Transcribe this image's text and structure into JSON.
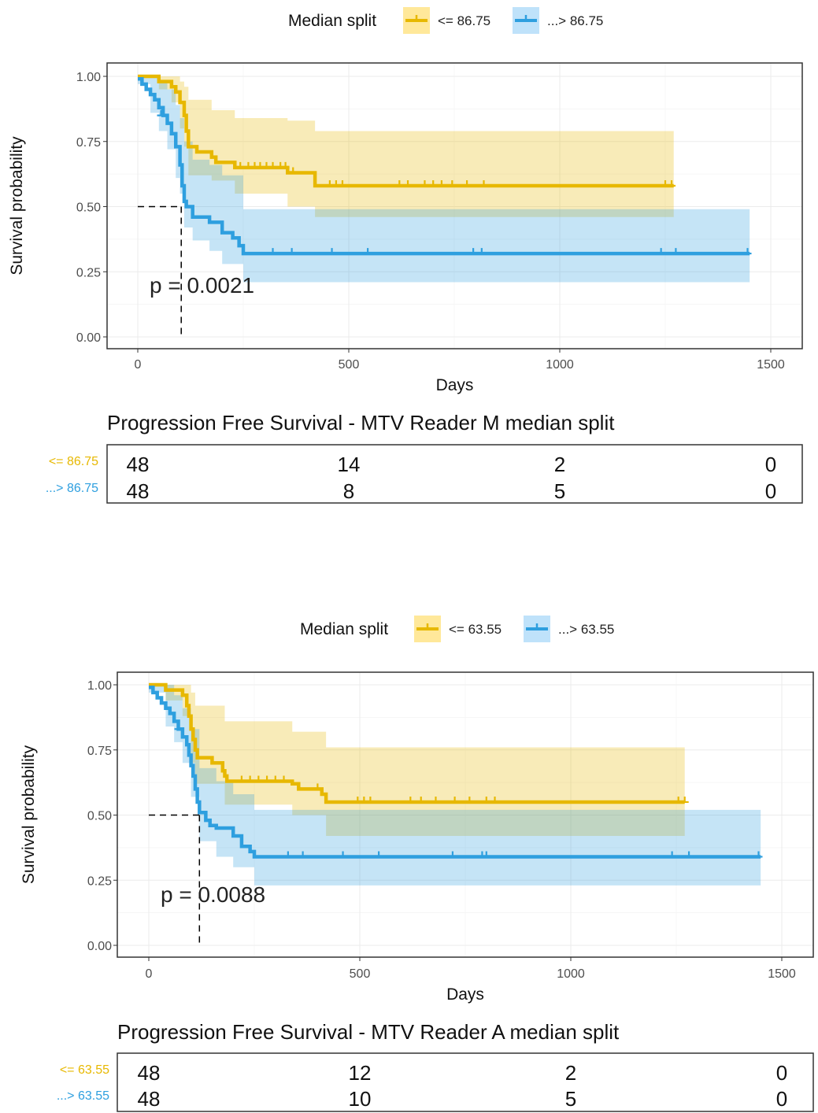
{
  "chart_data": [
    {
      "type": "line",
      "subtype": "kaplan-meier",
      "legend": {
        "title": "Median split",
        "position": "top",
        "entries": [
          {
            "label": "<= 86.75",
            "color": "#E7B800"
          },
          {
            "label": "...> 86.75",
            "color": "#2E9FDF"
          }
        ]
      },
      "ylabel": "Survival probability",
      "xlabel": "Days",
      "xlim": [
        0,
        1500
      ],
      "ylim": [
        0,
        1
      ],
      "xticks": [
        "0",
        "500",
        "1000",
        "1500"
      ],
      "yticks": [
        "0.00",
        "0.25",
        "0.50",
        "0.75",
        "1.00"
      ],
      "pvalue_text": "p = 0.0021",
      "median_line": {
        "x": 103,
        "y": 0.5
      },
      "series": [
        {
          "name": "<= 86.75",
          "color": "#E7B800",
          "fill": "#FFE89A",
          "steps": [
            [
              0,
              1.0
            ],
            [
              50,
              0.98
            ],
            [
              80,
              0.96
            ],
            [
              90,
              0.94
            ],
            [
              100,
              0.9
            ],
            [
              110,
              0.85
            ],
            [
              115,
              0.79
            ],
            [
              120,
              0.73
            ],
            [
              140,
              0.71
            ],
            [
              175,
              0.69
            ],
            [
              185,
              0.67
            ],
            [
              230,
              0.65
            ],
            [
              355,
              0.63
            ],
            [
              420,
              0.58
            ],
            [
              1270,
              0.58
            ]
          ],
          "upper": [
            [
              0,
              1.0
            ],
            [
              50,
              1.0
            ],
            [
              80,
              1.0
            ],
            [
              100,
              0.98
            ],
            [
              110,
              0.96
            ],
            [
              120,
              0.91
            ],
            [
              175,
              0.87
            ],
            [
              230,
              0.84
            ],
            [
              355,
              0.83
            ],
            [
              420,
              0.79
            ],
            [
              1270,
              0.75
            ]
          ],
          "lower": [
            [
              0,
              1.0
            ],
            [
              50,
              0.95
            ],
            [
              80,
              0.9
            ],
            [
              100,
              0.8
            ],
            [
              110,
              0.73
            ],
            [
              120,
              0.62
            ],
            [
              175,
              0.6
            ],
            [
              230,
              0.55
            ],
            [
              355,
              0.5
            ],
            [
              420,
              0.46
            ],
            [
              1270,
              0.46
            ]
          ],
          "censors": [
            [
              243,
              0.65
            ],
            [
              262,
              0.65
            ],
            [
              277,
              0.65
            ],
            [
              290,
              0.65
            ],
            [
              305,
              0.65
            ],
            [
              320,
              0.65
            ],
            [
              338,
              0.65
            ],
            [
              350,
              0.65
            ],
            [
              368,
              0.63
            ],
            [
              455,
              0.58
            ],
            [
              470,
              0.58
            ],
            [
              485,
              0.58
            ],
            [
              620,
              0.58
            ],
            [
              640,
              0.58
            ],
            [
              680,
              0.58
            ],
            [
              700,
              0.58
            ],
            [
              720,
              0.58
            ],
            [
              745,
              0.58
            ],
            [
              780,
              0.58
            ],
            [
              820,
              0.58
            ],
            [
              1250,
              0.58
            ],
            [
              1265,
              0.58
            ]
          ]
        },
        {
          "name": "...> 86.75",
          "color": "#2E9FDF",
          "fill": "#BFE2FA",
          "steps": [
            [
              0,
              0.99
            ],
            [
              10,
              0.97
            ],
            [
              20,
              0.95
            ],
            [
              30,
              0.93
            ],
            [
              40,
              0.91
            ],
            [
              50,
              0.88
            ],
            [
              60,
              0.85
            ],
            [
              70,
              0.82
            ],
            [
              80,
              0.78
            ],
            [
              90,
              0.73
            ],
            [
              100,
              0.66
            ],
            [
              105,
              0.58
            ],
            [
              110,
              0.52
            ],
            [
              115,
              0.5
            ],
            [
              130,
              0.46
            ],
            [
              170,
              0.44
            ],
            [
              200,
              0.4
            ],
            [
              225,
              0.38
            ],
            [
              240,
              0.35
            ],
            [
              250,
              0.32
            ],
            [
              1450,
              0.32
            ]
          ],
          "upper": [
            [
              0,
              1.0
            ],
            [
              30,
              1.0
            ],
            [
              50,
              0.98
            ],
            [
              70,
              0.95
            ],
            [
              90,
              0.89
            ],
            [
              100,
              0.84
            ],
            [
              110,
              0.75
            ],
            [
              130,
              0.68
            ],
            [
              170,
              0.66
            ],
            [
              200,
              0.62
            ],
            [
              250,
              0.49
            ],
            [
              1450,
              0.49
            ]
          ],
          "lower": [
            [
              0,
              0.97
            ],
            [
              30,
              0.86
            ],
            [
              50,
              0.79
            ],
            [
              70,
              0.72
            ],
            [
              90,
              0.61
            ],
            [
              100,
              0.55
            ],
            [
              110,
              0.42
            ],
            [
              130,
              0.37
            ],
            [
              170,
              0.33
            ],
            [
              200,
              0.28
            ],
            [
              250,
              0.21
            ],
            [
              1450,
              0.21
            ]
          ],
          "censors": [
            [
              55,
              0.85
            ],
            [
              320,
              0.32
            ],
            [
              365,
              0.32
            ],
            [
              460,
              0.32
            ],
            [
              545,
              0.32
            ],
            [
              795,
              0.32
            ],
            [
              815,
              0.32
            ],
            [
              1240,
              0.32
            ],
            [
              1275,
              0.32
            ],
            [
              1445,
              0.32
            ]
          ]
        }
      ],
      "risk_table": {
        "title": "Progression Free Survival -  MTV Reader M  median split",
        "rows": [
          {
            "label": "<= 86.75",
            "color": "#E7B800",
            "values": [
              "48",
              "14",
              "2",
              "0"
            ]
          },
          {
            "label": "...> 86.75",
            "color": "#2E9FDF",
            "values": [
              "48",
              "8",
              "5",
              "0"
            ]
          }
        ]
      }
    },
    {
      "type": "line",
      "subtype": "kaplan-meier",
      "legend": {
        "title": "Median split",
        "position": "top",
        "entries": [
          {
            "label": "<= 63.55",
            "color": "#E7B800"
          },
          {
            "label": "...> 63.55",
            "color": "#2E9FDF"
          }
        ]
      },
      "ylabel": "Survival probability",
      "xlabel": "Days",
      "xlim": [
        0,
        1500
      ],
      "ylim": [
        0,
        1
      ],
      "xticks": [
        "0",
        "500",
        "1000",
        "1500"
      ],
      "yticks": [
        "0.00",
        "0.25",
        "0.50",
        "0.75",
        "1.00"
      ],
      "pvalue_text": "p = 0.0088",
      "median_line": {
        "x": 120,
        "y": 0.5
      },
      "series": [
        {
          "name": "<= 63.55",
          "color": "#E7B800",
          "fill": "#FFE89A",
          "steps": [
            [
              0,
              1.0
            ],
            [
              40,
              0.98
            ],
            [
              80,
              0.96
            ],
            [
              90,
              0.92
            ],
            [
              95,
              0.88
            ],
            [
              100,
              0.83
            ],
            [
              105,
              0.79
            ],
            [
              110,
              0.75
            ],
            [
              115,
              0.72
            ],
            [
              150,
              0.7
            ],
            [
              175,
              0.67
            ],
            [
              180,
              0.65
            ],
            [
              185,
              0.63
            ],
            [
              340,
              0.62
            ],
            [
              355,
              0.6
            ],
            [
              410,
              0.58
            ],
            [
              420,
              0.55
            ],
            [
              1270,
              0.55
            ]
          ],
          "upper": [
            [
              0,
              1.0
            ],
            [
              80,
              1.0
            ],
            [
              100,
              0.97
            ],
            [
              110,
              0.92
            ],
            [
              180,
              0.86
            ],
            [
              340,
              0.82
            ],
            [
              420,
              0.76
            ],
            [
              1270,
              0.73
            ]
          ],
          "lower": [
            [
              0,
              1.0
            ],
            [
              40,
              0.94
            ],
            [
              80,
              0.88
            ],
            [
              100,
              0.7
            ],
            [
              110,
              0.62
            ],
            [
              180,
              0.54
            ],
            [
              340,
              0.5
            ],
            [
              420,
              0.42
            ],
            [
              1270,
              0.42
            ]
          ],
          "censors": [
            [
              220,
              0.63
            ],
            [
              240,
              0.63
            ],
            [
              260,
              0.63
            ],
            [
              280,
              0.63
            ],
            [
              300,
              0.63
            ],
            [
              320,
              0.63
            ],
            [
              400,
              0.6
            ],
            [
              495,
              0.55
            ],
            [
              510,
              0.55
            ],
            [
              525,
              0.55
            ],
            [
              620,
              0.55
            ],
            [
              645,
              0.55
            ],
            [
              680,
              0.55
            ],
            [
              725,
              0.55
            ],
            [
              760,
              0.55
            ],
            [
              800,
              0.55
            ],
            [
              820,
              0.55
            ],
            [
              1255,
              0.55
            ],
            [
              1270,
              0.55
            ]
          ]
        },
        {
          "name": "...> 63.55",
          "color": "#2E9FDF",
          "fill": "#BFE2FA",
          "steps": [
            [
              0,
              0.99
            ],
            [
              10,
              0.97
            ],
            [
              20,
              0.95
            ],
            [
              30,
              0.93
            ],
            [
              40,
              0.91
            ],
            [
              50,
              0.89
            ],
            [
              60,
              0.86
            ],
            [
              70,
              0.83
            ],
            [
              80,
              0.8
            ],
            [
              90,
              0.77
            ],
            [
              95,
              0.73
            ],
            [
              100,
              0.69
            ],
            [
              105,
              0.65
            ],
            [
              110,
              0.6
            ],
            [
              115,
              0.55
            ],
            [
              120,
              0.51
            ],
            [
              135,
              0.48
            ],
            [
              145,
              0.46
            ],
            [
              160,
              0.45
            ],
            [
              200,
              0.42
            ],
            [
              220,
              0.38
            ],
            [
              240,
              0.36
            ],
            [
              250,
              0.34
            ],
            [
              1450,
              0.34
            ]
          ],
          "upper": [
            [
              0,
              1.0
            ],
            [
              40,
              1.0
            ],
            [
              60,
              0.96
            ],
            [
              80,
              0.91
            ],
            [
              100,
              0.83
            ],
            [
              120,
              0.68
            ],
            [
              160,
              0.63
            ],
            [
              200,
              0.58
            ],
            [
              250,
              0.52
            ],
            [
              1450,
              0.52
            ]
          ],
          "lower": [
            [
              0,
              0.97
            ],
            [
              40,
              0.84
            ],
            [
              60,
              0.78
            ],
            [
              80,
              0.7
            ],
            [
              100,
              0.57
            ],
            [
              120,
              0.4
            ],
            [
              160,
              0.34
            ],
            [
              200,
              0.3
            ],
            [
              250,
              0.23
            ],
            [
              1450,
              0.23
            ]
          ],
          "censors": [
            [
              70,
              0.83
            ],
            [
              330,
              0.34
            ],
            [
              365,
              0.34
            ],
            [
              460,
              0.34
            ],
            [
              545,
              0.34
            ],
            [
              720,
              0.34
            ],
            [
              790,
              0.34
            ],
            [
              800,
              0.34
            ],
            [
              1240,
              0.34
            ],
            [
              1280,
              0.34
            ],
            [
              1445,
              0.34
            ]
          ]
        }
      ],
      "risk_table": {
        "title": "Progression Free Survival -   MTV Reader A  median split",
        "rows": [
          {
            "label": "<= 63.55",
            "color": "#E7B800",
            "values": [
              "48",
              "12",
              "2",
              "0"
            ]
          },
          {
            "label": "...> 63.55",
            "color": "#2E9FDF",
            "values": [
              "48",
              "10",
              "5",
              "0"
            ]
          }
        ]
      }
    }
  ]
}
